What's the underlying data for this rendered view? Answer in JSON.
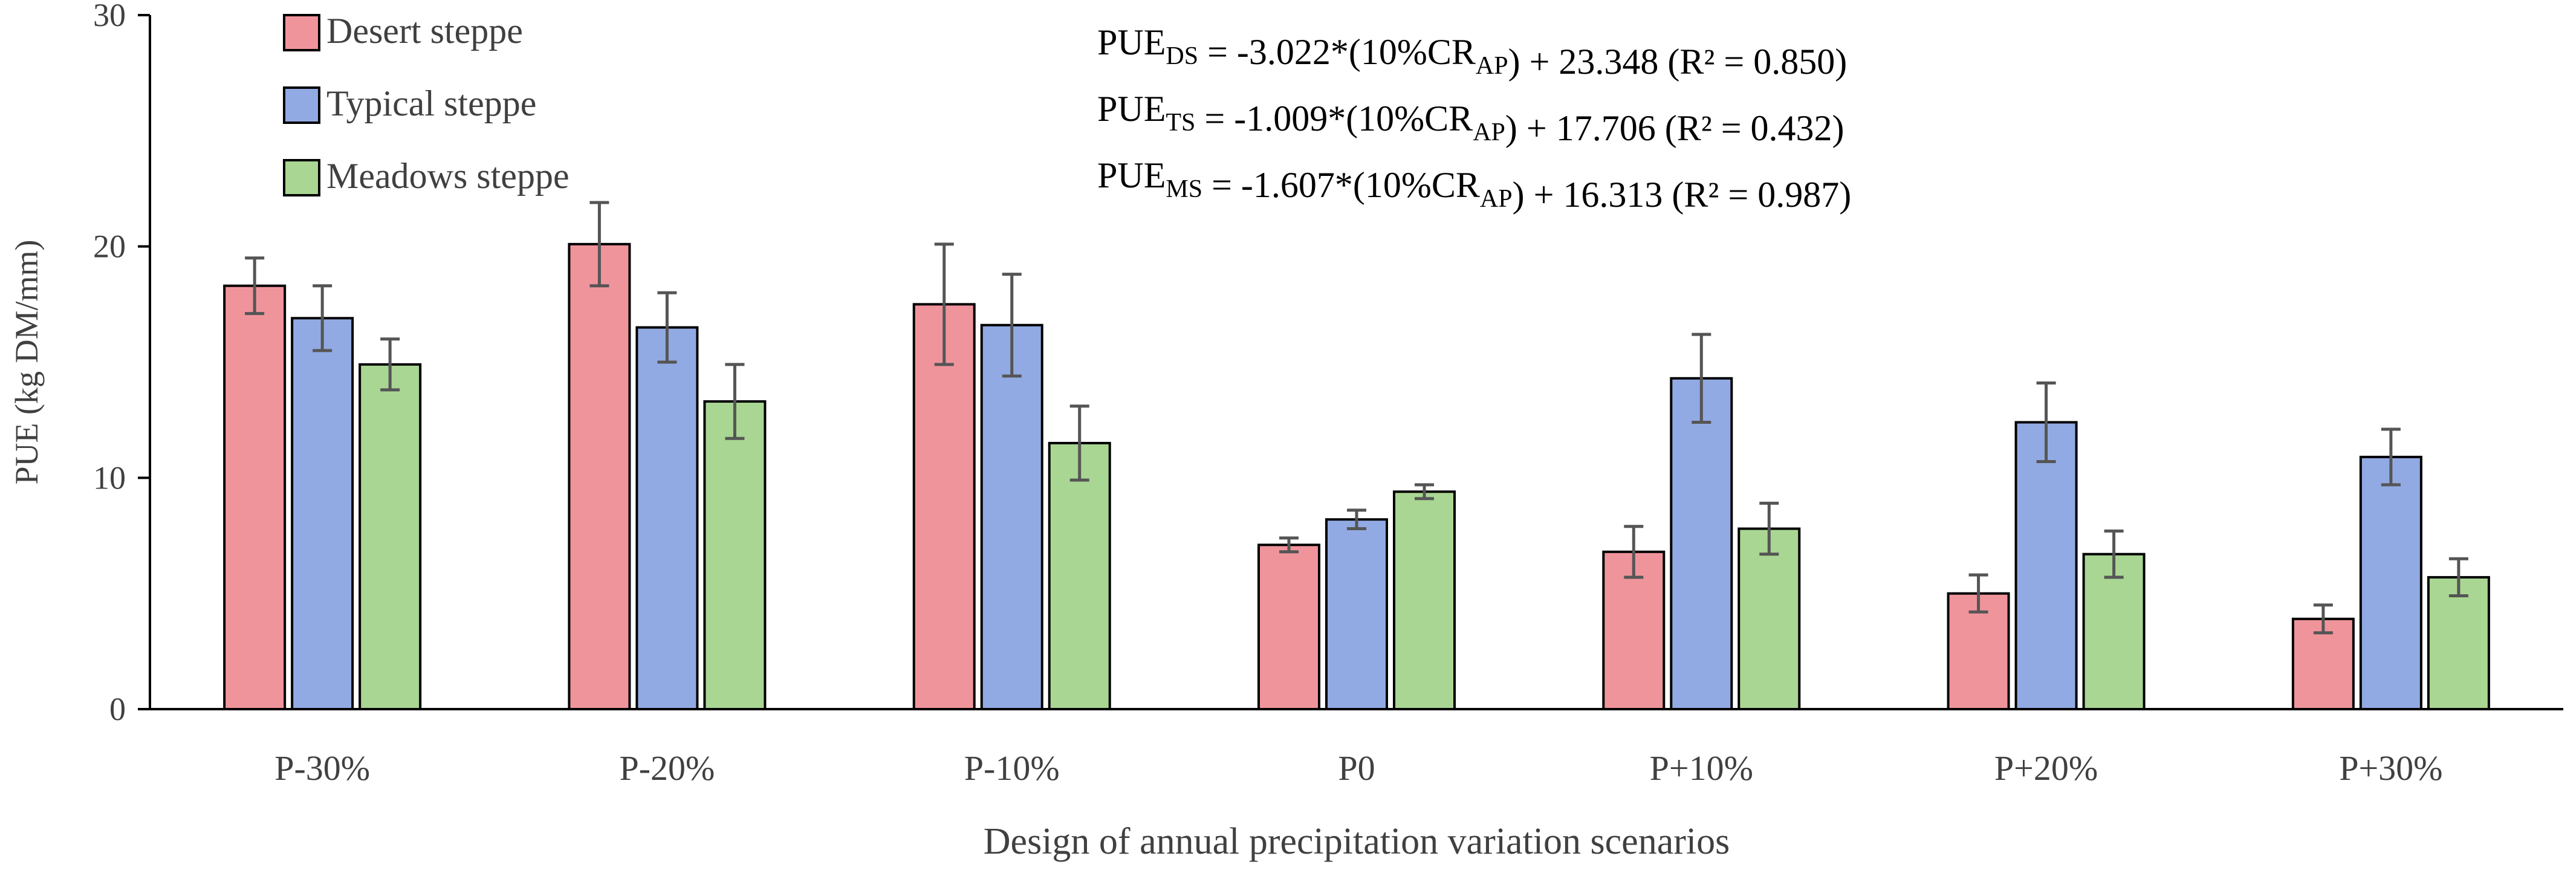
{
  "chart_data": {
    "type": "bar",
    "title": "",
    "xlabel": "Design of annual precipitation variation scenarios",
    "ylabel": "PUE (kg DM/mm)",
    "ylim": [
      0,
      30
    ],
    "yticks": [
      "0",
      "10",
      "20",
      "30"
    ],
    "grid": false,
    "legend_position": "top-left",
    "categories": [
      "P-30%",
      "P-20%",
      "P-10%",
      "P0",
      "P+10%",
      "P+20%",
      "P+30%"
    ],
    "series": [
      {
        "name": "Desert steppe",
        "color": "#f0949c",
        "values": [
          18.3,
          20.1,
          17.5,
          7.1,
          6.8,
          5.0,
          3.9
        ],
        "errors": [
          1.2,
          1.8,
          2.6,
          0.3,
          1.1,
          0.8,
          0.6
        ]
      },
      {
        "name": "Typical steppe",
        "color": "#92aae3",
        "values": [
          16.9,
          16.5,
          16.6,
          8.2,
          14.3,
          12.4,
          10.9
        ],
        "errors": [
          1.4,
          1.5,
          2.2,
          0.4,
          1.9,
          1.7,
          1.2
        ]
      },
      {
        "name": "Meadows steppe",
        "color": "#a9d692",
        "values": [
          14.9,
          13.3,
          11.5,
          9.4,
          7.8,
          6.7,
          5.7
        ],
        "errors": [
          1.1,
          1.6,
          1.6,
          0.3,
          1.1,
          1.0,
          0.8
        ]
      }
    ],
    "equations": [
      {
        "lhs": "PUE",
        "sub": "DS",
        "rhs_a": " = -3.022*(10%CR",
        "sub2": "AP",
        "rhs_b": ") + 23.348 (R² = 0.850)"
      },
      {
        "lhs": "PUE",
        "sub": "TS",
        "rhs_a": " = -1.009*(10%CR",
        "sub2": "AP",
        "rhs_b": ") + 17.706 (R² = 0.432)"
      },
      {
        "lhs": "PUE",
        "sub": "MS",
        "rhs_a": " = -1.607*(10%CR",
        "sub2": "AP",
        "rhs_b": ") + 16.313 (R² = 0.987)"
      }
    ]
  }
}
